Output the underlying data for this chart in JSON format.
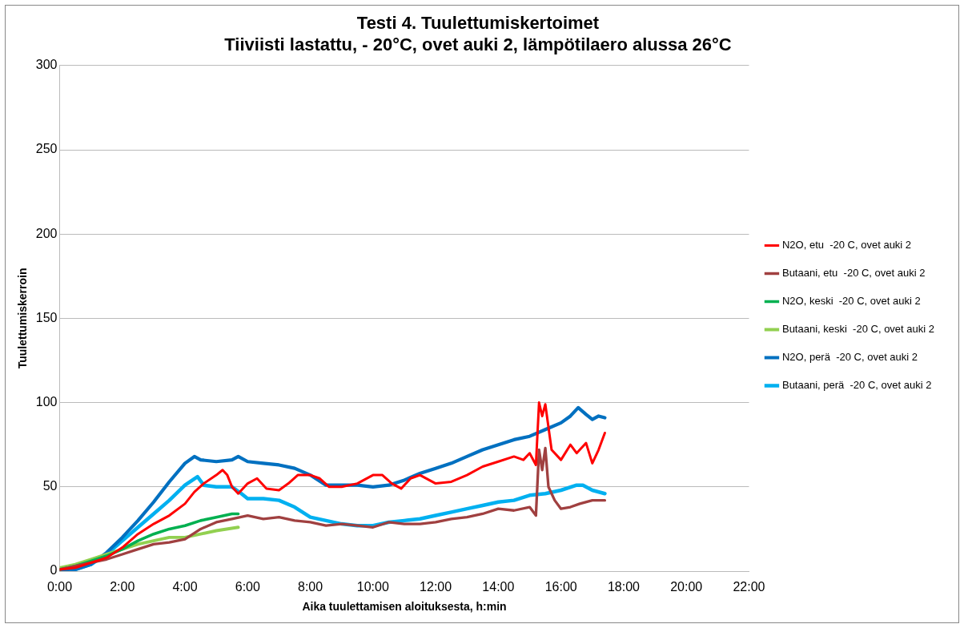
{
  "chart_data": {
    "type": "line",
    "title": [
      "Testi 4. Tuulettumiskertoimet",
      "Tiiviisti lastattu, - 20°C, ovet auki 2, lämpötilaero alussa 26°C"
    ],
    "xlabel": "Aika tuulettamisen aloituksesta, h:min",
    "ylabel": "Tuulettumiskerroin",
    "xlim": [
      0,
      22
    ],
    "xticks": [
      {
        "value": 0,
        "label": "0:00"
      },
      {
        "value": 2,
        "label": "2:00"
      },
      {
        "value": 4,
        "label": "4:00"
      },
      {
        "value": 6,
        "label": "6:00"
      },
      {
        "value": 8,
        "label": "8:00"
      },
      {
        "value": 10,
        "label": "10:00"
      },
      {
        "value": 12,
        "label": "12:00"
      },
      {
        "value": 14,
        "label": "14:00"
      },
      {
        "value": 16,
        "label": "16:00"
      },
      {
        "value": 18,
        "label": "18:00"
      },
      {
        "value": 20,
        "label": "20:00"
      },
      {
        "value": 22,
        "label": "22:00"
      }
    ],
    "ylim": [
      0,
      300
    ],
    "yticks": [
      0,
      50,
      100,
      150,
      200,
      250,
      300
    ],
    "grid": "y",
    "legend": "right",
    "marker": "none",
    "line_style": "solid",
    "series": [
      {
        "name": "N2O, etu  -20 C, ovet auki 2",
        "color": "#ff0000",
        "x": [
          0,
          0.5,
          1,
          1.5,
          2,
          2.5,
          3,
          3.5,
          4,
          4.3,
          4.6,
          5,
          5.2,
          5.35,
          5.5,
          5.7,
          6,
          6.3,
          6.6,
          7,
          7.3,
          7.6,
          8,
          8.3,
          8.6,
          9,
          9.5,
          10,
          10.3,
          10.6,
          10.9,
          11.2,
          11.5,
          12,
          12.5,
          13,
          13.5,
          14,
          14.5,
          14.8,
          15,
          15.2,
          15.3,
          15.4,
          15.5,
          15.7,
          16,
          16.3,
          16.5,
          16.8,
          17,
          17.2,
          17.4
        ],
        "values": [
          1,
          2,
          5,
          8,
          14,
          22,
          28,
          33,
          40,
          47,
          52,
          57,
          60,
          57,
          50,
          46,
          52,
          55,
          49,
          48,
          52,
          57,
          57,
          55,
          50,
          50,
          52,
          57,
          57,
          52,
          49,
          55,
          57,
          52,
          53,
          57,
          62,
          65,
          68,
          66,
          70,
          63,
          100,
          92,
          99,
          72,
          66,
          75,
          70,
          76,
          64,
          72,
          82
        ]
      },
      {
        "name": "Butaani, etu  -20 C, ovet auki 2",
        "color": "#a04040",
        "x": [
          0,
          0.5,
          1,
          1.5,
          2,
          2.5,
          3,
          3.5,
          4,
          4.5,
          5,
          5.5,
          6,
          6.5,
          7,
          7.5,
          8,
          8.5,
          9,
          9.5,
          10,
          10.5,
          11,
          11.5,
          12,
          12.5,
          13,
          13.5,
          14,
          14.5,
          15,
          15.2,
          15.3,
          15.4,
          15.5,
          15.6,
          15.8,
          16,
          16.3,
          16.6,
          17,
          17.4
        ],
        "values": [
          1,
          3,
          5,
          7,
          10,
          13,
          16,
          17,
          19,
          25,
          29,
          31,
          33,
          31,
          32,
          30,
          29,
          27,
          28,
          27,
          26,
          29,
          28,
          28,
          29,
          31,
          32,
          34,
          37,
          36,
          38,
          33,
          72,
          60,
          73,
          50,
          42,
          37,
          38,
          40,
          42,
          42
        ]
      },
      {
        "name": "N2O, keski  -20 C, ovet auki 2",
        "color": "#00b050",
        "x": [
          0,
          0.5,
          1,
          1.5,
          2,
          2.5,
          3,
          3.5,
          4,
          4.5,
          5,
          5.5,
          5.7
        ],
        "values": [
          1,
          3,
          6,
          9,
          13,
          18,
          22,
          25,
          27,
          30,
          32,
          34,
          34
        ]
      },
      {
        "name": "Butaani, keski  -20 C, ovet auki 2",
        "color": "#92d050",
        "x": [
          0,
          0.5,
          1,
          1.5,
          2,
          2.5,
          3,
          3.5,
          4,
          4.5,
          5,
          5.7
        ],
        "values": [
          2,
          4,
          7,
          10,
          13,
          16,
          18,
          20,
          20,
          22,
          24,
          26
        ]
      },
      {
        "name": "N2O, perä  -20 C, ovet auki 2",
        "color": "#0070c0",
        "x": [
          0,
          0.5,
          1,
          1.5,
          2,
          2.5,
          3,
          3.5,
          4,
          4.3,
          4.5,
          5,
          5.5,
          5.7,
          6,
          6.5,
          7,
          7.5,
          8,
          8.5,
          9,
          9.5,
          10,
          10.5,
          11,
          11.5,
          12,
          12.5,
          13,
          13.5,
          14,
          14.5,
          15,
          15.5,
          16,
          16.3,
          16.55,
          16.8,
          17,
          17.2,
          17.4
        ],
        "values": [
          0,
          1,
          4,
          11,
          20,
          30,
          41,
          53,
          64,
          68,
          66,
          65,
          66,
          68,
          65,
          64,
          63,
          61,
          57,
          51,
          51,
          51,
          50,
          51,
          54,
          58,
          61,
          64,
          68,
          72,
          75,
          78,
          80,
          84,
          88,
          92,
          97,
          93,
          90,
          92,
          91
        ]
      },
      {
        "name": "Butaani, perä  -20 C, ovet auki 2",
        "color": "#00b0f0",
        "x": [
          0,
          0.5,
          1,
          1.5,
          2,
          2.5,
          3,
          3.5,
          4,
          4.4,
          4.6,
          5,
          5.5,
          5.8,
          6,
          6.5,
          7,
          7.5,
          8,
          8.5,
          9,
          9.5,
          10,
          10.5,
          11,
          11.5,
          12,
          12.5,
          13,
          13.5,
          14,
          14.5,
          15,
          15.5,
          16,
          16.5,
          16.7,
          17,
          17.4
        ],
        "values": [
          0,
          1,
          4,
          10,
          18,
          26,
          34,
          42,
          51,
          56,
          51,
          50,
          50,
          46,
          43,
          43,
          42,
          38,
          32,
          30,
          28,
          27,
          27,
          29,
          30,
          31,
          33,
          35,
          37,
          39,
          41,
          42,
          45,
          46,
          48,
          51,
          51,
          48,
          46
        ]
      }
    ]
  }
}
